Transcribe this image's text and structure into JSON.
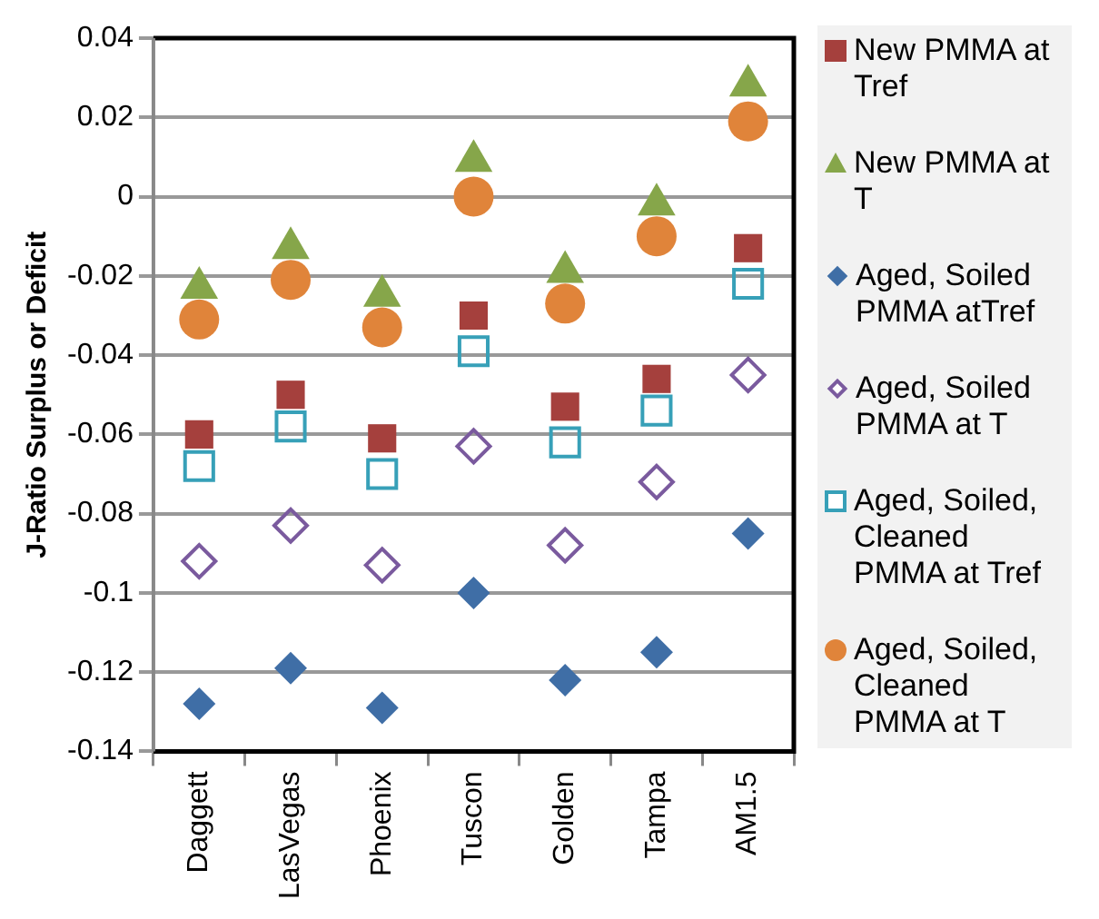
{
  "chart_data": {
    "type": "scatter",
    "ylabel": "J-Ratio Surplus or Deficit",
    "categories": [
      "Daggett",
      "LasVegas",
      "Phoenix",
      "Tuscon",
      "Golden",
      "Tampa",
      "AM1.5"
    ],
    "ylim": [
      -0.14,
      0.04
    ],
    "yticks": [
      -0.14,
      -0.12,
      -0.1,
      -0.08,
      -0.06,
      -0.04,
      -0.02,
      0,
      0.02,
      0.04
    ],
    "grid": "y",
    "legend": "right",
    "series": [
      {
        "name": "New PMMA at Tref",
        "color": "#a5403d",
        "marker": "square",
        "values": [
          -0.06,
          -0.05,
          -0.061,
          -0.03,
          -0.053,
          -0.046,
          -0.013
        ]
      },
      {
        "name": "New PMMA at T",
        "color": "#86a64a",
        "marker": "triangle",
        "values": [
          -0.023,
          -0.013,
          -0.025,
          0.009,
          -0.019,
          -0.002,
          0.028
        ]
      },
      {
        "name": "Aged, Soiled PMMA atTref",
        "color": "#3f6ea6",
        "marker": "diamond",
        "values": [
          -0.128,
          -0.119,
          -0.129,
          -0.1,
          -0.122,
          -0.115,
          -0.085
        ]
      },
      {
        "name": "Aged, Soiled PMMA at T",
        "color": "#7a5a9e",
        "marker": "diamond",
        "values": [
          -0.092,
          -0.083,
          -0.093,
          -0.063,
          -0.088,
          -0.072,
          -0.045
        ]
      },
      {
        "name": "Aged, Soiled, Cleaned PMMA at Tref",
        "color": "#37a0b8",
        "marker": "square",
        "values": [
          -0.068,
          -0.058,
          -0.07,
          -0.039,
          -0.062,
          -0.054,
          -0.022
        ]
      },
      {
        "name": "Aged, Soiled, Cleaned PMMA at T",
        "color": "#e0843a",
        "marker": "circle",
        "values": [
          -0.031,
          -0.021,
          -0.033,
          0.0,
          -0.027,
          -0.01,
          0.019
        ]
      }
    ]
  }
}
